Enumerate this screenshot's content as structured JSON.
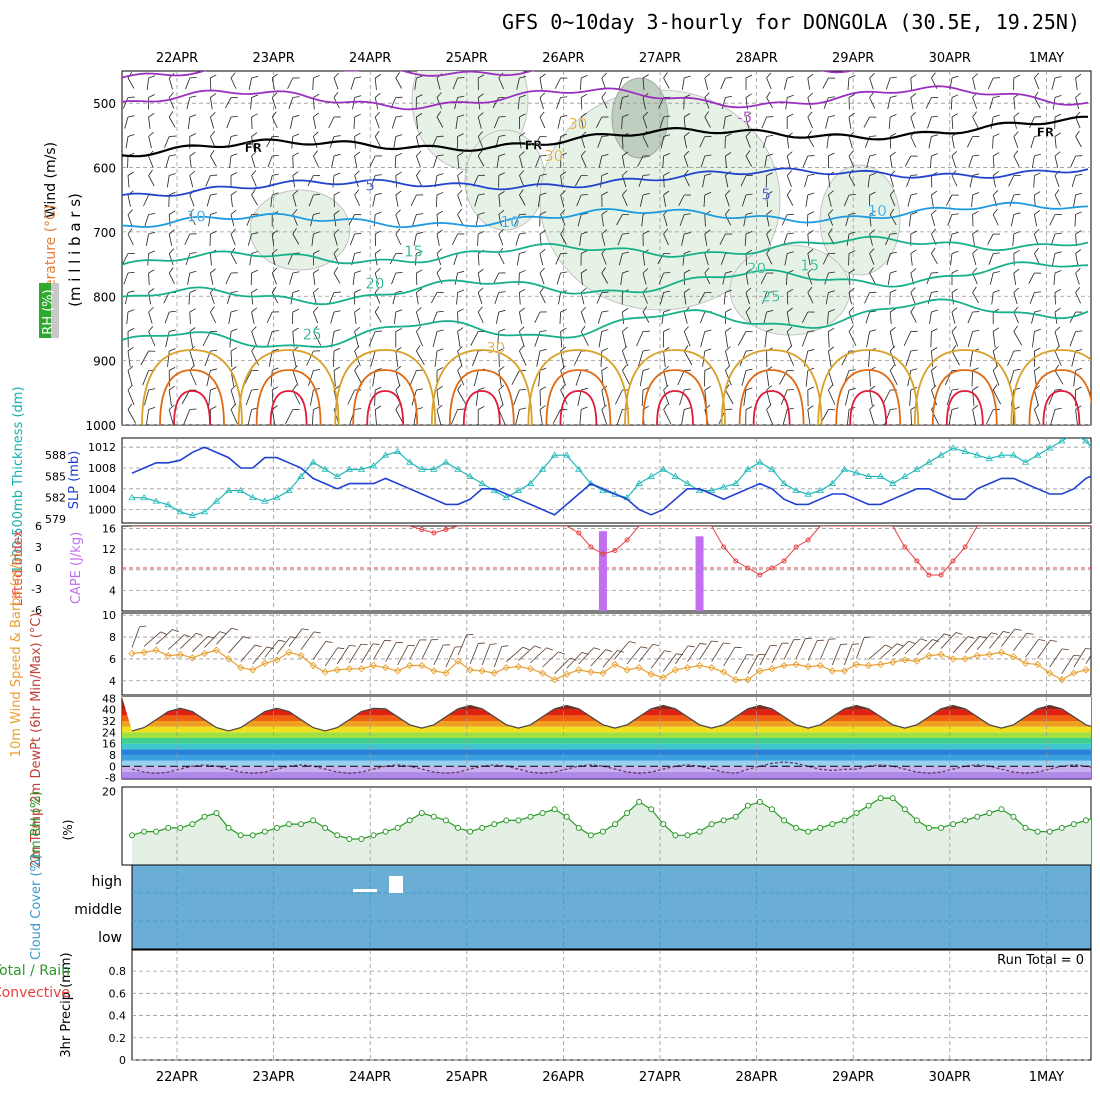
{
  "title": "GFS 0~10day 3-hourly for DONGOLA (30.5E, 19.25N)",
  "date_labels": [
    "22APR",
    "23APR",
    "24APR",
    "25APR",
    "26APR",
    "27APR",
    "28APR",
    "29APR",
    "30APR",
    "1MAY"
  ],
  "colors": {
    "purple": "#9b30c0",
    "black": "#000000",
    "blue": "#2244cc",
    "skyblue": "#1e9be0",
    "teal": "#18b08a",
    "gold": "#d9a12a",
    "orange": "#e06a14",
    "red": "#e01a3a",
    "cape": "#c070f0",
    "li": "#e84040",
    "thick": "#20b8b8",
    "slp": "#2040d0",
    "wind10": "#e8a030",
    "rh2m": "#2a9a2a",
    "cloud": "#6aaed6",
    "green_fill": "#e4f0e4"
  },
  "chart_data": [
    {
      "type": "heatmap",
      "name": "upper-air cross section",
      "ylabel": "(m i l l i b a r s)",
      "side_labels": {
        "wind": "Wind (m/s)",
        "temperature": "Temperature (°C)",
        "rh": "RH (%)"
      },
      "yticks": [
        500,
        600,
        700,
        800,
        900,
        1000
      ],
      "ylim": [
        450,
        1000
      ],
      "contour_labels": [
        {
          "text": "-5",
          "day": 5.8,
          "p": 530
        },
        {
          "text": "FR",
          "day": 0.7,
          "p": 576
        },
        {
          "text": "FR",
          "day": 3.6,
          "p": 572
        },
        {
          "text": "FR",
          "day": 8.9,
          "p": 552
        },
        {
          "text": "5",
          "day": 1.95,
          "p": 636
        },
        {
          "text": "5",
          "day": 6.05,
          "p": 650
        },
        {
          "text": "10",
          "day": 0.1,
          "p": 684
        },
        {
          "text": "10",
          "day": 3.35,
          "p": 692
        },
        {
          "text": "10",
          "day": 7.15,
          "p": 675
        },
        {
          "text": "15",
          "day": 2.35,
          "p": 738
        },
        {
          "text": "15",
          "day": 6.45,
          "p": 760
        },
        {
          "text": "20",
          "day": 1.95,
          "p": 788
        },
        {
          "text": "20",
          "day": 5.9,
          "p": 765
        },
        {
          "text": "25",
          "day": 1.3,
          "p": 867
        },
        {
          "text": "25",
          "day": 6.05,
          "p": 808
        },
        {
          "text": "30",
          "day": 3.2,
          "p": 888
        },
        {
          "text": "30",
          "day": 3.8,
          "p": 590
        },
        {
          "text": "30",
          "day": 4.05,
          "p": 540
        }
      ]
    },
    {
      "type": "line",
      "name": "thickness and slp",
      "ylabel_left": "1000-500mb Thickness (dm)",
      "ylabel_right": "SLP (mb)",
      "yticks_left": [
        579,
        582,
        585,
        588
      ],
      "yticks_right": [
        1000,
        1004,
        1008,
        1012
      ],
      "series": [
        {
          "name": "Thickness",
          "values": [
            582,
            582,
            581.5,
            581,
            580,
            579.5,
            580,
            581.5,
            583,
            583,
            582,
            581.5,
            582,
            583,
            585,
            587,
            586,
            585,
            586,
            586,
            586.5,
            588,
            588.5,
            587,
            586,
            586,
            587,
            586,
            585,
            584,
            583,
            582,
            583,
            584,
            586,
            588,
            588,
            586,
            584,
            583,
            582.5,
            582,
            584,
            585,
            586,
            585,
            584,
            583,
            583,
            583.5,
            584,
            586,
            587,
            586,
            584,
            583,
            582.5,
            583,
            584,
            586,
            585.5,
            585,
            585,
            584,
            585,
            586,
            587,
            588,
            589,
            588.5,
            588,
            587.5,
            588,
            588,
            587,
            588,
            589,
            590,
            591,
            590,
            588,
            589,
            590,
            589,
            587,
            586,
            585
          ]
        },
        {
          "name": "SLP",
          "values": [
            1007,
            1008,
            1009,
            1009,
            1009.5,
            1011,
            1012,
            1011,
            1010,
            1008,
            1008,
            1010,
            1010,
            1009,
            1008,
            1006,
            1005,
            1004,
            1005,
            1005,
            1005,
            1006,
            1005,
            1004,
            1003,
            1002,
            1001,
            1001,
            1002,
            1004,
            1004,
            1003,
            1002,
            1001,
            1000,
            999,
            1001,
            1003,
            1005,
            1004,
            1003,
            1002,
            1000,
            999,
            1000,
            1002,
            1004,
            1004,
            1003,
            1002,
            1003,
            1004,
            1005,
            1004,
            1002,
            1001,
            1001,
            1002,
            1003,
            1003,
            1002,
            1001,
            1001,
            1002,
            1003,
            1004,
            1004,
            1003,
            1002,
            1002,
            1004,
            1005,
            1006,
            1006,
            1005,
            1004,
            1003,
            1003,
            1004,
            1006,
            1007,
            1006,
            1005,
            1005,
            1006,
            1007,
            1009
          ]
        }
      ]
    },
    {
      "type": "bar",
      "name": "lifted index and cape",
      "ylabel_left": "Lifted Index",
      "ylabel_right": "CAPE (J/kg)",
      "yticks_left": [
        "6",
        "3",
        "0",
        "-3",
        "-6"
      ],
      "yticks_right": [
        4,
        8,
        12,
        16
      ],
      "cape_values": [
        {
          "step": 39,
          "value": 15.5
        },
        {
          "step": 47,
          "value": 14.5
        }
      ],
      "li_values": [
        6,
        6,
        6,
        6,
        6,
        6,
        6,
        6,
        6,
        6,
        6,
        6,
        6,
        6,
        6,
        6,
        6,
        6,
        6,
        6,
        6,
        6,
        6,
        6,
        5.5,
        5,
        5.5,
        6,
        6,
        6,
        6,
        6,
        6,
        6,
        6,
        6,
        6,
        5,
        3,
        2,
        2.5,
        4,
        6,
        6,
        6,
        6,
        6,
        6,
        6,
        3,
        1,
        0,
        -1,
        0,
        1,
        3,
        4,
        6,
        6,
        6,
        6,
        6,
        6,
        6,
        3,
        1,
        -1,
        -1,
        1,
        3,
        6,
        6,
        6,
        6,
        6,
        6,
        6,
        6,
        6,
        6,
        6,
        6,
        6,
        6,
        6,
        6,
        6,
        6,
        6
      ]
    },
    {
      "type": "line",
      "name": "10m wind",
      "ylabel": "10m Wind Speed & Barbs (m/s)",
      "yticks": [
        4,
        6,
        8,
        10
      ],
      "values": [
        6.5,
        6.6,
        6.8,
        6.3,
        6.4,
        6.1,
        6.5,
        6.8,
        6.0,
        5.2,
        5.0,
        5.6,
        5.9,
        6.6,
        6.3,
        5.4,
        4.8,
        5.0,
        5.1,
        5.1,
        5.4,
        5.2,
        4.9,
        5.4,
        5.4,
        4.9,
        4.7,
        5.8,
        5.0,
        4.9,
        4.7,
        5.2,
        5.3,
        5.1,
        4.7,
        4.1,
        4.6,
        5.0,
        4.8,
        4.7,
        5.5,
        5.0,
        5.2,
        4.6,
        4.3,
        5.0,
        5.2,
        5.4,
        5.2,
        4.8,
        4.1,
        4.1,
        4.9,
        5.1,
        5.4,
        5.5,
        5.3,
        5.4,
        4.9,
        4.9,
        5.5,
        5.4,
        5.5,
        5.7,
        5.9,
        5.8,
        6.3,
        6.4,
        6.0,
        6.0,
        6.3,
        6.4,
        6.6,
        6.2,
        5.6,
        5.5,
        4.7,
        4.1,
        4.7,
        5.0,
        5.0,
        5.3,
        6.9,
        7.3,
        7.4,
        7.5,
        8.2,
        8.9,
        9.0,
        9.9
      ]
    },
    {
      "type": "area",
      "name": "2m temperature",
      "ylabel": "2m Temp 2m DewPt (6hr Min/Max) (°C)",
      "yticks": [
        -8,
        0,
        8,
        16,
        24,
        32,
        40,
        48
      ]
    },
    {
      "type": "line",
      "name": "2m rh",
      "ylabel": "2m RH (%)",
      "yticks": [
        20
      ],
      "values": [
        8,
        9,
        9,
        10,
        10,
        11,
        13,
        14,
        10,
        8,
        8,
        9,
        10,
        11,
        11,
        12,
        10,
        8,
        7,
        7,
        8,
        9,
        10,
        12,
        14,
        13,
        12,
        10,
        9,
        10,
        11,
        12,
        12,
        13,
        14,
        15,
        13,
        10,
        8,
        9,
        11,
        14,
        17,
        15,
        11,
        8,
        8,
        9,
        11,
        12,
        13,
        16,
        17,
        15,
        12,
        10,
        9,
        10,
        11,
        12,
        14,
        16,
        18,
        18,
        15,
        12,
        10,
        10,
        11,
        12,
        13,
        14,
        15,
        13,
        10,
        9,
        9,
        10,
        11,
        12,
        13,
        14,
        12,
        9,
        8,
        9,
        10,
        12,
        15,
        17,
        15
      ]
    },
    {
      "type": "bar",
      "name": "cloud cover",
      "ylabel": "Cloud Cover (%)",
      "categories": [
        "high",
        "middle",
        "low"
      ]
    },
    {
      "type": "bar",
      "name": "precipitation",
      "ylabel": "3hr Precip (mm)",
      "legend_total": "Total / Rain",
      "legend_convective": "Convective",
      "yticks": [
        "0",
        "0.2",
        "0.4",
        "0.6",
        "0.8"
      ],
      "run_total": "Run Total = 0"
    }
  ]
}
